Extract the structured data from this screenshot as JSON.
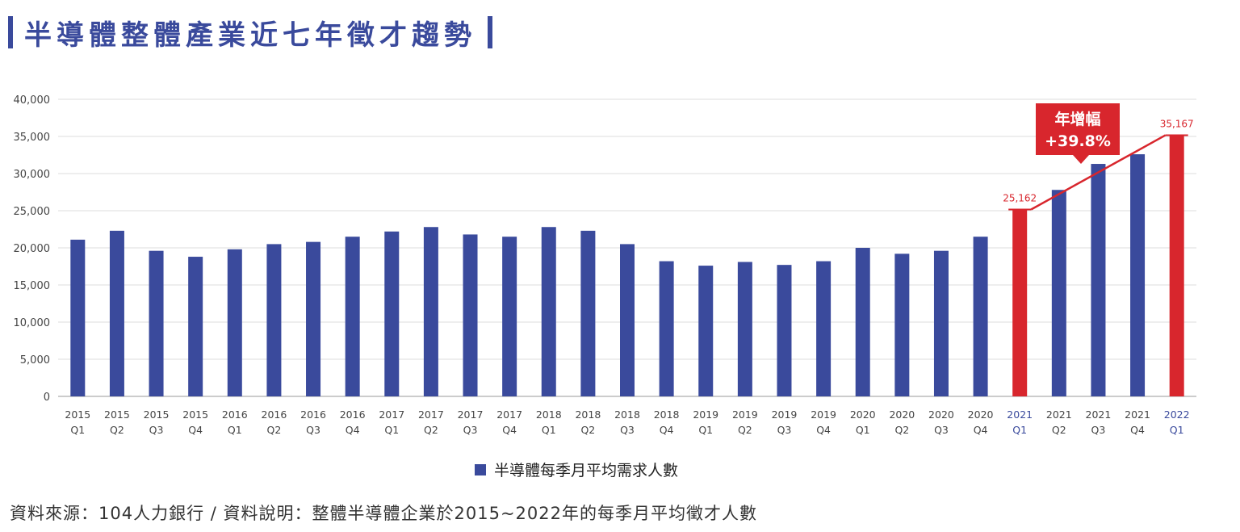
{
  "page": {
    "title": "半導體整體產業近七年徵才趨勢",
    "source_note": "資料來源：104人力銀行 / 資料說明：整體半導體企業於2015~2022年的每季月平均徵才人數"
  },
  "colors": {
    "primary": "#3a4a9c",
    "highlight": "#d8262d",
    "grid": "#dddddd",
    "axis_text": "#444444",
    "highlight_label": "#3a4a9c"
  },
  "chart_data": {
    "type": "bar",
    "categories": [
      [
        "2015",
        "Q1"
      ],
      [
        "2015",
        "Q2"
      ],
      [
        "2015",
        "Q3"
      ],
      [
        "2015",
        "Q4"
      ],
      [
        "2016",
        "Q1"
      ],
      [
        "2016",
        "Q2"
      ],
      [
        "2016",
        "Q3"
      ],
      [
        "2016",
        "Q4"
      ],
      [
        "2017",
        "Q1"
      ],
      [
        "2017",
        "Q2"
      ],
      [
        "2017",
        "Q3"
      ],
      [
        "2017",
        "Q4"
      ],
      [
        "2018",
        "Q1"
      ],
      [
        "2018",
        "Q2"
      ],
      [
        "2018",
        "Q3"
      ],
      [
        "2018",
        "Q4"
      ],
      [
        "2019",
        "Q1"
      ],
      [
        "2019",
        "Q2"
      ],
      [
        "2019",
        "Q3"
      ],
      [
        "2019",
        "Q4"
      ],
      [
        "2020",
        "Q1"
      ],
      [
        "2020",
        "Q2"
      ],
      [
        "2020",
        "Q3"
      ],
      [
        "2020",
        "Q4"
      ],
      [
        "2021",
        "Q1"
      ],
      [
        "2021",
        "Q2"
      ],
      [
        "2021",
        "Q3"
      ],
      [
        "2021",
        "Q4"
      ],
      [
        "2022",
        "Q1"
      ]
    ],
    "series": [
      {
        "name": "半導體每季月平均需求人數",
        "values": [
          21100,
          22300,
          19600,
          18800,
          19800,
          20500,
          20800,
          21500,
          22200,
          22800,
          21800,
          21500,
          22800,
          22300,
          20500,
          18200,
          17600,
          18100,
          17700,
          18200,
          20000,
          19200,
          19600,
          21500,
          25162,
          27800,
          31300,
          32600,
          35167
        ]
      }
    ],
    "highlight_indices": [
      24,
      28
    ],
    "data_labels": [
      {
        "index": 24,
        "text": "25,162"
      },
      {
        "index": 28,
        "text": "35,167"
      }
    ],
    "annotation": {
      "line": "年增幅",
      "value": "+39.8%"
    },
    "yticks": [
      "40,000",
      "35,000",
      "30,000",
      "25,000",
      "20,000",
      "15,000",
      "10,000",
      "5,000",
      "0"
    ],
    "ylim": [
      0,
      40000
    ],
    "grid": true,
    "legend_position": "bottom"
  }
}
